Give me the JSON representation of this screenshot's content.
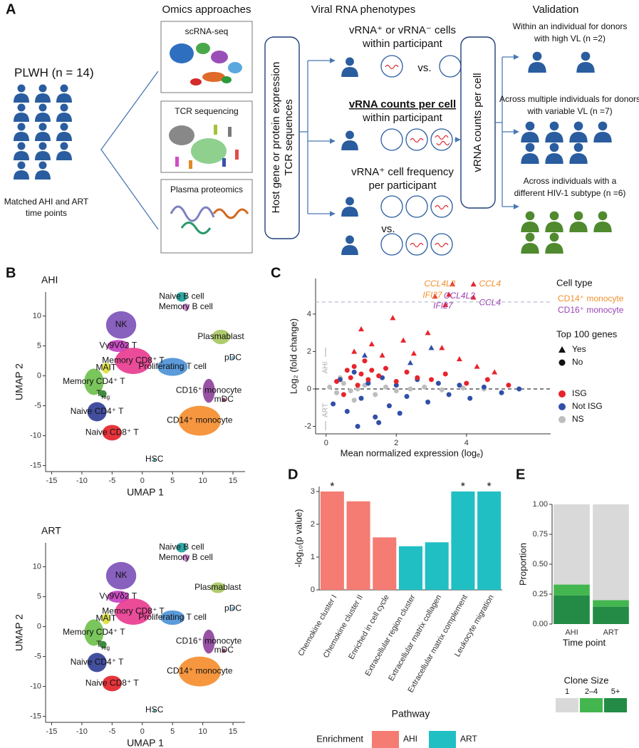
{
  "panel_labels": [
    "A",
    "B",
    "C",
    "D",
    "E"
  ],
  "panel_a": {
    "headings": [
      "Omics approaches",
      "Viral RNA phenotypes",
      "Validation"
    ],
    "cohort": {
      "title": "PLWH (n = 14)",
      "caption": [
        "Matched AHI and ART",
        "time points"
      ]
    },
    "omics": [
      "scRNA-seq",
      "TCR sequencing",
      "Plasma proteomics"
    ],
    "inputs": [
      "Host gene or protein expression",
      "TCR sequences"
    ],
    "phenotypes": [
      {
        "lines": [
          "vRNA⁺ or vRNA⁻ cells",
          "within participant"
        ],
        "vs": "vs."
      },
      {
        "lines": [
          "vRNA counts per cell",
          "within participant"
        ]
      },
      {
        "lines": [
          "vRNA⁺ cell frequency",
          "per participant"
        ],
        "vs": "vs."
      }
    ],
    "measure": "vRNA counts per cell",
    "validation": [
      {
        "lines": [
          "Within an individual for donors",
          "with high VL (n =2)"
        ]
      },
      {
        "lines": [
          "Across multiple individuals for donors",
          "with variable VL (n =7)"
        ]
      },
      {
        "lines": [
          "Across individuals with a",
          "different HIV-1 subtype (n =6)"
        ]
      }
    ]
  },
  "chart_data": [
    {
      "type": "umap",
      "title": "AHI",
      "xlabel": "UMAP 1",
      "ylabel": "UMAP 2",
      "xlim": [
        -16,
        17
      ],
      "xticks": [
        -15,
        -10,
        -5,
        0,
        5,
        10,
        15
      ],
      "ylim": [
        -16,
        14
      ],
      "yticks": [
        -15,
        -10,
        -5,
        0,
        5,
        10
      ],
      "clusters": [
        {
          "name": "Naive B cell",
          "color": "#1a9f9a",
          "x": 6.5,
          "y": 13.2,
          "sx": 0.9,
          "sy": 0.8
        },
        {
          "name": "Memory B cell",
          "color": "#c77dcc",
          "x": 7.2,
          "y": 11.5,
          "sx": 0.6,
          "sy": 0.6
        },
        {
          "name": "NK",
          "color": "#7b4fb7",
          "x": -3.5,
          "y": 8.5,
          "sx": 2.5,
          "sy": 2.3
        },
        {
          "name": "Plasmablast",
          "color": "#a5c75e",
          "x": 13,
          "y": 6.5,
          "sx": 1.5,
          "sy": 1.2
        },
        {
          "name": "Vγ9Vδ2 T",
          "color": "#c43bbf",
          "x": -4,
          "y": 5,
          "sx": 1.8,
          "sy": 1
        },
        {
          "name": "pDC",
          "color": "#6fb8e0",
          "x": 15,
          "y": 3,
          "sx": 0.3,
          "sy": 0.3
        },
        {
          "name": "Memory CD8⁺ T",
          "color": "#e8398e",
          "x": -1.5,
          "y": 2.5,
          "sx": 3,
          "sy": 2.2
        },
        {
          "name": "MAIT",
          "color": "#dfe033",
          "x": -6,
          "y": 1.3,
          "sx": 0.7,
          "sy": 0.9
        },
        {
          "name": "Proliferating T cell",
          "color": "#4a90d6",
          "x": 5,
          "y": 1.5,
          "sx": 2.5,
          "sy": 1.5
        },
        {
          "name": "Memory CD4⁺ T",
          "color": "#6bbf4a",
          "x": -8,
          "y": -1,
          "sx": 1.6,
          "sy": 2.2
        },
        {
          "name": "T",
          "sub": "reg",
          "color": "#2a7f2a",
          "x": -6.5,
          "y": -3,
          "sx": 0.6,
          "sy": 0.6
        },
        {
          "name": "CD16⁺ monocyte",
          "color": "#8c3f9a",
          "x": 11,
          "y": -2.5,
          "sx": 1,
          "sy": 2
        },
        {
          "name": "mDC",
          "color": "#8a1e5c",
          "x": 13.5,
          "y": -4,
          "sx": 0.3,
          "sy": 0.3
        },
        {
          "name": "Naive CD4⁺ T",
          "color": "#2e3c94",
          "x": -7.5,
          "y": -6,
          "sx": 1.6,
          "sy": 1.6
        },
        {
          "name": "CD14⁺ monocyte",
          "color": "#f58c2b",
          "x": 9.5,
          "y": -7.5,
          "sx": 3.5,
          "sy": 2.5
        },
        {
          "name": "Naive CD8⁺ T",
          "color": "#e31e26",
          "x": -5,
          "y": -9.5,
          "sx": 1.6,
          "sy": 1.3
        },
        {
          "name": "HSC",
          "color": "#1a9f9a",
          "x": 2,
          "y": -14,
          "sx": 0.2,
          "sy": 0.2
        }
      ]
    },
    {
      "type": "umap",
      "title": "ART",
      "xlabel": "UMAP 1",
      "ylabel": "UMAP 2",
      "xlim": [
        -16,
        17
      ],
      "xticks": [
        -15,
        -10,
        -5,
        0,
        5,
        10,
        15
      ],
      "ylim": [
        -16,
        14
      ],
      "yticks": [
        -15,
        -10,
        -5,
        0,
        5,
        10
      ],
      "clusters": [
        {
          "name": "Naive B cell",
          "color": "#1a9f9a",
          "x": 6.5,
          "y": 13.2,
          "sx": 0.9,
          "sy": 0.8
        },
        {
          "name": "Memory B cell",
          "color": "#c77dcc",
          "x": 7.2,
          "y": 11.5,
          "sx": 0.6,
          "sy": 0.6
        },
        {
          "name": "NK",
          "color": "#7b4fb7",
          "x": -3.5,
          "y": 8.5,
          "sx": 2.5,
          "sy": 2.3
        },
        {
          "name": "Plasmablast",
          "color": "#a5c75e",
          "x": 12.5,
          "y": 6.5,
          "sx": 1.2,
          "sy": 0.9
        },
        {
          "name": "Vγ9Vδ2 T",
          "color": "#c43bbf",
          "x": -4,
          "y": 5,
          "sx": 1.8,
          "sy": 1
        },
        {
          "name": "pDC",
          "color": "#6fb8e0",
          "x": 15,
          "y": 3,
          "sx": 0.3,
          "sy": 0.3
        },
        {
          "name": "Memory CD8⁺ T",
          "color": "#e8398e",
          "x": -1.5,
          "y": 2.5,
          "sx": 3,
          "sy": 2.2
        },
        {
          "name": "MAIT",
          "color": "#dfe033",
          "x": -6,
          "y": 1.3,
          "sx": 0.7,
          "sy": 0.9
        },
        {
          "name": "Proliferating T cell",
          "color": "#4a90d6",
          "x": 5,
          "y": 1.5,
          "sx": 2,
          "sy": 1.2
        },
        {
          "name": "Memory CD4⁺ T",
          "color": "#6bbf4a",
          "x": -8,
          "y": -1,
          "sx": 1.6,
          "sy": 2.2
        },
        {
          "name": "T",
          "sub": "reg",
          "color": "#2a7f2a",
          "x": -6.5,
          "y": -3,
          "sx": 0.6,
          "sy": 0.6
        },
        {
          "name": "CD16⁺ monocyte",
          "color": "#8c3f9a",
          "x": 11,
          "y": -2.5,
          "sx": 1,
          "sy": 2
        },
        {
          "name": "mDC",
          "color": "#8a1e5c",
          "x": 13.5,
          "y": -4,
          "sx": 0.3,
          "sy": 0.3
        },
        {
          "name": "Naive CD4⁺ T",
          "color": "#2e3c94",
          "x": -7.5,
          "y": -6,
          "sx": 1.6,
          "sy": 1.6
        },
        {
          "name": "CD14⁺ monocyte",
          "color": "#f58c2b",
          "x": 9.5,
          "y": -7.5,
          "sx": 3.5,
          "sy": 2.5
        },
        {
          "name": "Naive CD8⁺ T",
          "color": "#e31e26",
          "x": -5,
          "y": -9.5,
          "sx": 1.6,
          "sy": 1.3
        },
        {
          "name": "HSC",
          "color": "#1a9f9a",
          "x": 2,
          "y": -14,
          "sx": 0.2,
          "sy": 0.2
        }
      ]
    },
    {
      "type": "scatter",
      "xlabel": "Mean normalized expression (logₑ)",
      "ylabel": "Log₂ (fold change)",
      "xlim": [
        -0.3,
        6.4
      ],
      "xticks": [
        0,
        2,
        4
      ],
      "ylim": [
        -2.4,
        5.9
      ],
      "yticks": [
        -2,
        0,
        2,
        4
      ],
      "hlines": [
        {
          "value": 0,
          "color": "#000000"
        },
        {
          "value": 4.65,
          "color": "#a9acc4"
        }
      ],
      "direction_labels": [
        "AHI",
        "ART"
      ],
      "series": [
        {
          "name": "ISG",
          "color": "#e8232b",
          "x": [
            0.3,
            0.5,
            0.6,
            0.7,
            0.8,
            0.9,
            1.0,
            1.1,
            1.2,
            1.3,
            1.5,
            1.7,
            2.0,
            2.3,
            2.6,
            3.0,
            3.4,
            4.0,
            4.6,
            5.2,
            0.8,
            1.0,
            1.3,
            1.6,
            1.9,
            2.2,
            2.5,
            2.9,
            3.3,
            3.8,
            4.3,
            4.8,
            3.5,
            3.6,
            4.2,
            3.1,
            4.2,
            3.4
          ],
          "values": [
            0.4,
            -0.3,
            1.0,
            0.6,
            1.2,
            0.2,
            0.8,
            1.5,
            0.5,
            1.0,
            0.7,
            1.1,
            0.4,
            0.9,
            0.6,
            0.5,
            0.8,
            0.3,
            0.5,
            0.2,
            2.0,
            3.2,
            2.4,
            1.8,
            3.8,
            2.6,
            1.9,
            3.0,
            2.2,
            1.6,
            1.2,
            0.9,
            5.05,
            5.6,
            5.6,
            4.95,
            4.9,
            4.5
          ],
          "top": [
            false,
            false,
            false,
            false,
            false,
            false,
            false,
            false,
            false,
            false,
            false,
            false,
            false,
            false,
            false,
            false,
            false,
            false,
            false,
            false,
            true,
            true,
            true,
            true,
            true,
            true,
            true,
            true,
            true,
            true,
            true,
            true,
            true,
            true,
            true,
            true,
            true,
            true
          ]
        },
        {
          "name": "Not ISG",
          "color": "#2f4fa8",
          "x": [
            0.2,
            0.4,
            0.6,
            0.8,
            1.0,
            1.2,
            1.4,
            1.6,
            1.8,
            2.0,
            2.3,
            2.6,
            2.9,
            3.2,
            3.5,
            3.8,
            4.1,
            4.5,
            5.0,
            5.5,
            1.1,
            2.4,
            3.0,
            0.9,
            1.5,
            2.1
          ],
          "values": [
            -0.8,
            0.5,
            -1.2,
            0.9,
            -0.5,
            0.3,
            -1.5,
            0.6,
            -0.9,
            0.2,
            -0.4,
            0.5,
            -0.7,
            0.3,
            -0.3,
            0.2,
            -0.5,
            0.1,
            -0.2,
            0.0,
            1.8,
            1.4,
            2.2,
            -2.0,
            -1.8,
            -1.3
          ],
          "top": [
            false,
            false,
            false,
            false,
            false,
            false,
            false,
            false,
            false,
            false,
            false,
            false,
            false,
            false,
            false,
            false,
            false,
            false,
            false,
            false,
            true,
            true,
            true,
            false,
            false,
            false
          ]
        },
        {
          "name": "NS",
          "color": "#bdbdbd",
          "x": [
            0.1,
            0.3,
            0.5,
            0.7,
            0.9,
            1.1,
            1.4,
            1.7,
            2.0,
            2.4,
            2.8,
            3.3,
            3.9,
            4.5,
            0.4,
            0.8,
            1.2
          ],
          "values": [
            0.1,
            -0.2,
            0.3,
            -0.1,
            0.0,
            0.2,
            -0.3,
            0.1,
            -0.1,
            0.0,
            0.1,
            -0.05,
            0.05,
            0.0,
            0.6,
            -0.6,
            0.4
          ],
          "top": [
            false,
            false,
            false,
            false,
            false,
            false,
            false,
            false,
            false,
            false,
            false,
            false,
            false,
            false,
            false,
            false,
            false
          ]
        }
      ],
      "legends": [
        {
          "title": "Cell type",
          "items": [
            {
              "label": "CD14⁺ monocyte",
              "color": "#f0912f"
            },
            {
              "label": "CD16⁺ monocyte",
              "color": "#9b45b5"
            }
          ]
        },
        {
          "title": "Top 100 genes",
          "items": [
            {
              "label": "Yes",
              "shape": "triangle"
            },
            {
              "label": "No",
              "shape": "circle"
            }
          ]
        }
      ],
      "annotations": [
        {
          "text": "CCL4L2",
          "x": 3.24,
          "y": 5.6,
          "group": 0
        },
        {
          "text": "CCL4",
          "x": 4.67,
          "y": 5.6,
          "group": 0
        },
        {
          "text": "IFI27",
          "x": 3.03,
          "y": 5.0,
          "group": 0
        },
        {
          "text": "CCL4L2",
          "x": 3.8,
          "y": 4.95,
          "group": 1
        },
        {
          "text": "IFI27",
          "x": 3.33,
          "y": 4.43,
          "group": 1
        },
        {
          "text": "CCL4",
          "x": 4.67,
          "y": 4.6,
          "group": 1
        }
      ]
    },
    {
      "type": "bar",
      "xlabel": "Pathway",
      "ylabel": "-log₁₀(p value)",
      "categories": [
        "Chemokine cluster I",
        "Chemokine cluster II",
        "Enriched in cell cycle",
        "Extracellular region cluster",
        "Extracellular matrix collagen",
        "Extracellular matrix complement",
        "Leukocyte migration"
      ],
      "values": [
        3,
        2.7,
        1.6,
        1.33,
        1.45,
        3,
        3
      ],
      "groups": [
        0,
        0,
        0,
        1,
        1,
        1,
        1
      ],
      "annotations": [
        "*",
        null,
        null,
        null,
        null,
        "*",
        "*"
      ],
      "ylim": [
        0,
        3.15
      ],
      "yticks": [
        0,
        1,
        2,
        3
      ],
      "legend": {
        "title": "Enrichment",
        "items": [
          {
            "label": "AHI",
            "color": "#f47c73"
          },
          {
            "label": "ART",
            "color": "#1fbfc4"
          }
        ]
      }
    },
    {
      "type": "stacked_bar",
      "xlabel": "Time point",
      "ylabel": "Proportion",
      "categories": [
        "AHI",
        "ART"
      ],
      "series": [
        {
          "name": "1",
          "color": "#d9d9d9",
          "values": [
            0.67,
            0.8
          ]
        },
        {
          "name": "2–4",
          "color": "#43b64f",
          "values": [
            0.09,
            0.055
          ]
        },
        {
          "name": "5+",
          "color": "#238b45",
          "values": [
            0.24,
            0.145
          ]
        }
      ],
      "ylim": [
        0,
        1
      ],
      "yticks": [
        {
          "value": 0,
          "label": "0.00"
        },
        {
          "value": 0.25,
          "label": "0.25"
        },
        {
          "value": 0.5,
          "label": "0.50"
        },
        {
          "value": 0.75,
          "label": "0.75"
        },
        {
          "value": 1,
          "label": "1.00"
        }
      ],
      "legend_title": "Clone Size"
    }
  ]
}
